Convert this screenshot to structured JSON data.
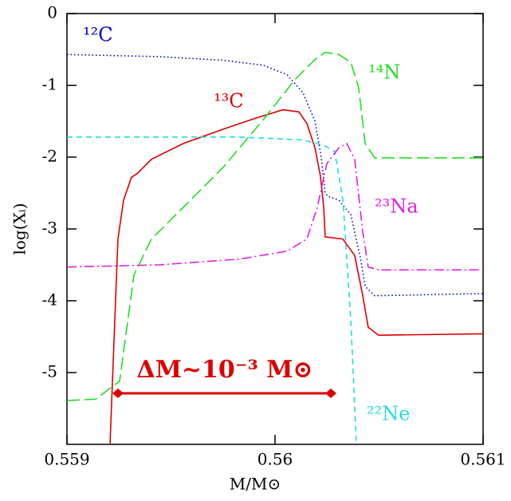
{
  "chart_data": {
    "type": "line",
    "xlabel": "M/M⊙",
    "ylabel": "log(Xᵢ)",
    "xlim": [
      0.559,
      0.561
    ],
    "xticks": [
      0.559,
      0.56,
      0.561
    ],
    "ylim": [
      -6,
      0
    ],
    "yticks": [
      0,
      -1,
      -2,
      -3,
      -4,
      -5
    ],
    "annotation": "ΔM~10⁻³ M⊙",
    "series": [
      {
        "name": "¹²C",
        "color": "#0000cc",
        "style": "dotted",
        "x": [
          0.559,
          0.559444,
          0.559751,
          0.559943,
          0.560057,
          0.560134,
          0.560192,
          0.560222,
          0.560241,
          0.560257,
          0.560307,
          0.560364,
          0.56041,
          0.560433,
          0.560479,
          0.561
        ],
        "values": [
          -0.57,
          -0.6,
          -0.65,
          -0.72,
          -0.85,
          -1.1,
          -1.5,
          -2.0,
          -2.5,
          -2.55,
          -2.6,
          -2.8,
          -3.4,
          -3.8,
          -3.93,
          -3.9
        ]
      },
      {
        "name": "¹³C",
        "color": "#dd0000",
        "style": "solid",
        "x": [
          0.559207,
          0.559245,
          0.559272,
          0.55931,
          0.559337,
          0.559406,
          0.559559,
          0.559751,
          0.559904,
          0.560038,
          0.560115,
          0.560153,
          0.560192,
          0.560218,
          0.560234,
          0.560241,
          0.560326,
          0.560383,
          0.560421,
          0.560448,
          0.560498,
          0.561
        ],
        "values": [
          -6,
          -3.14,
          -2.6,
          -2.28,
          -2.23,
          -2.03,
          -1.81,
          -1.61,
          -1.46,
          -1.34,
          -1.37,
          -1.53,
          -1.87,
          -2.26,
          -2.7,
          -3.11,
          -3.14,
          -3.37,
          -3.92,
          -4.37,
          -4.48,
          -4.46
        ]
      },
      {
        "name": "¹⁴N",
        "color": "#22dd22",
        "style": "longdash",
        "x": [
          0.559,
          0.559138,
          0.559253,
          0.559322,
          0.559406,
          0.559559,
          0.559751,
          0.559943,
          0.560096,
          0.560192,
          0.560241,
          0.560307,
          0.560364,
          0.560402,
          0.560433,
          0.560479,
          0.561
        ],
        "values": [
          -5.39,
          -5.37,
          -5.12,
          -3.64,
          -3.14,
          -2.7,
          -2.14,
          -1.48,
          -0.92,
          -0.64,
          -0.54,
          -0.57,
          -0.68,
          -1.03,
          -1.81,
          -2.01,
          -2.01
        ]
      },
      {
        "name": "²²Ne",
        "color": "#22dddd",
        "style": "dashed",
        "x": [
          0.559,
          0.559828,
          0.560134,
          0.56023,
          0.560287,
          0.560326,
          0.560364,
          0.560391
        ],
        "values": [
          -1.72,
          -1.72,
          -1.76,
          -1.83,
          -1.92,
          -2.59,
          -4.26,
          -6
        ]
      },
      {
        "name": "²³Na",
        "color": "#dd22dd",
        "style": "dashdot",
        "x": [
          0.559,
          0.559444,
          0.559828,
          0.560057,
          0.560153,
          0.560203,
          0.560249,
          0.560307,
          0.560345,
          0.560383,
          0.560421,
          0.560448,
          0.560498,
          0.561
        ],
        "values": [
          -3.53,
          -3.5,
          -3.42,
          -3.31,
          -3.14,
          -2.7,
          -2.09,
          -1.87,
          -1.81,
          -2.03,
          -3.03,
          -3.53,
          -3.57,
          -3.57
        ]
      }
    ]
  }
}
